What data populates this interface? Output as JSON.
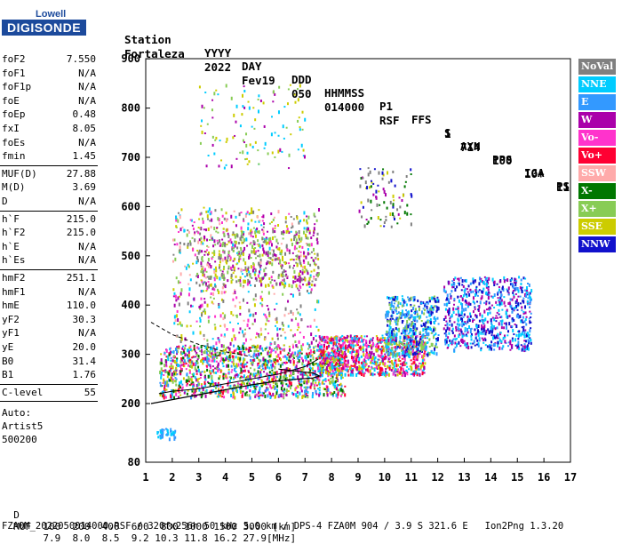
{
  "logo": {
    "top": "Lowell",
    "bottom": "DIGISONDE"
  },
  "header": {
    "row1": [
      "Station",
      "YYYY",
      "DAY",
      "DDD",
      "HHMMSS",
      "P1",
      "FFS",
      "S",
      "AXN",
      "PPS",
      "IGA",
      "PS"
    ],
    "row2": [
      "Fortaleza",
      "2022",
      "Fev19",
      "050",
      "014000",
      "RSF",
      "1",
      "714",
      "100",
      "10+",
      "11"
    ]
  },
  "params": {
    "group1": [
      {
        "name": "foF2",
        "value": "7.550"
      },
      {
        "name": "foF1",
        "value": "N/A"
      },
      {
        "name": "foF1p",
        "value": "N/A"
      },
      {
        "name": "foE",
        "value": "N/A"
      },
      {
        "name": "foEp",
        "value": "0.48"
      },
      {
        "name": "fxI",
        "value": "8.05"
      },
      {
        "name": "foEs",
        "value": "N/A"
      },
      {
        "name": "fmin",
        "value": "1.45"
      }
    ],
    "group2": [
      {
        "name": "MUF(D)",
        "value": "27.88"
      },
      {
        "name": "M(D)",
        "value": "3.69"
      },
      {
        "name": "D",
        "value": "N/A"
      }
    ],
    "group3": [
      {
        "name": "h`F",
        "value": "215.0"
      },
      {
        "name": "h`F2",
        "value": "215.0"
      },
      {
        "name": "h`E",
        "value": "N/A"
      },
      {
        "name": "h`Es",
        "value": "N/A"
      }
    ],
    "group4": [
      {
        "name": "hmF2",
        "value": "251.1"
      },
      {
        "name": "hmF1",
        "value": "N/A"
      },
      {
        "name": "hmE",
        "value": "110.0"
      },
      {
        "name": "yF2",
        "value": "30.3"
      },
      {
        "name": "yF1",
        "value": "N/A"
      },
      {
        "name": "yE",
        "value": "20.0"
      },
      {
        "name": "B0",
        "value": "31.4"
      },
      {
        "name": "B1",
        "value": "1.76"
      }
    ],
    "clevel": {
      "name": "C-level",
      "value": "55"
    },
    "auto": [
      "Auto:",
      "Artist5",
      "500200"
    ]
  },
  "legend": [
    {
      "label": "NoVal",
      "color": "#808080"
    },
    {
      "label": "NNE",
      "color": "#00ccff"
    },
    {
      "label": "E",
      "color": "#3399ff"
    },
    {
      "label": "W",
      "color": "#aa00aa"
    },
    {
      "label": "Vo-",
      "color": "#ff33cc"
    },
    {
      "label": "Vo+",
      "color": "#ff0033"
    },
    {
      "label": "SSW",
      "color": "#ffaaaa"
    },
    {
      "label": "X-",
      "color": "#007700"
    },
    {
      "label": "X+",
      "color": "#88cc55"
    },
    {
      "label": "SSE",
      "color": "#cccc00"
    },
    {
      "label": "NNW",
      "color": "#1111cc"
    }
  ],
  "chart_data": {
    "type": "scatter",
    "xlim": [
      1,
      17
    ],
    "ylim": [
      80,
      900
    ],
    "xticks": [
      "1",
      "2",
      "3",
      "4",
      "5",
      "6",
      "7",
      "8",
      "9",
      "10",
      "11",
      "12",
      "13",
      "14",
      "15",
      "16",
      "17"
    ],
    "yticks": [
      "80",
      "200",
      "300",
      "400",
      "500",
      "600",
      "700",
      "800",
      "900"
    ],
    "xunit": "MHz",
    "yunit": "km",
    "profile_curve": {
      "x": [
        1.2,
        2.0,
        3.0,
        4.0,
        5.0,
        6.0,
        6.8,
        7.3,
        7.55,
        7.3,
        6.0
      ],
      "y": [
        200,
        208,
        218,
        228,
        238,
        246,
        250,
        252,
        256,
        262,
        270
      ]
    },
    "trace_curve": {
      "x": [
        1.5,
        2.0,
        3.0,
        4.0,
        5.0,
        6.0,
        7.0,
        7.5
      ],
      "y": [
        220,
        225,
        230,
        240,
        250,
        260,
        275,
        290
      ]
    },
    "dashed_curve": {
      "x": [
        1.2,
        2.0,
        3.0,
        4.0,
        5.0
      ],
      "y": [
        365,
        340,
        320,
        305,
        295
      ]
    }
  },
  "footer": {
    "row1_label": "D",
    "row1_values": [
      "100",
      "200",
      "400",
      "600",
      "800",
      "1000",
      "1500",
      "3000",
      "[km]"
    ],
    "row2_label": "MUF",
    "row2_values": [
      "7.9",
      "8.0",
      "8.5",
      "9.2",
      "10.3",
      "11.8",
      "16.2",
      "27.9",
      "[MHz]"
    ],
    "row3": "FZA0M_2022050014000.RSF / 320fx256h 50 kHz 5.0 km / DPS-4 FZA0M 904 / 3.9 S 321.6 E   Ion2Png 1.3.20"
  }
}
